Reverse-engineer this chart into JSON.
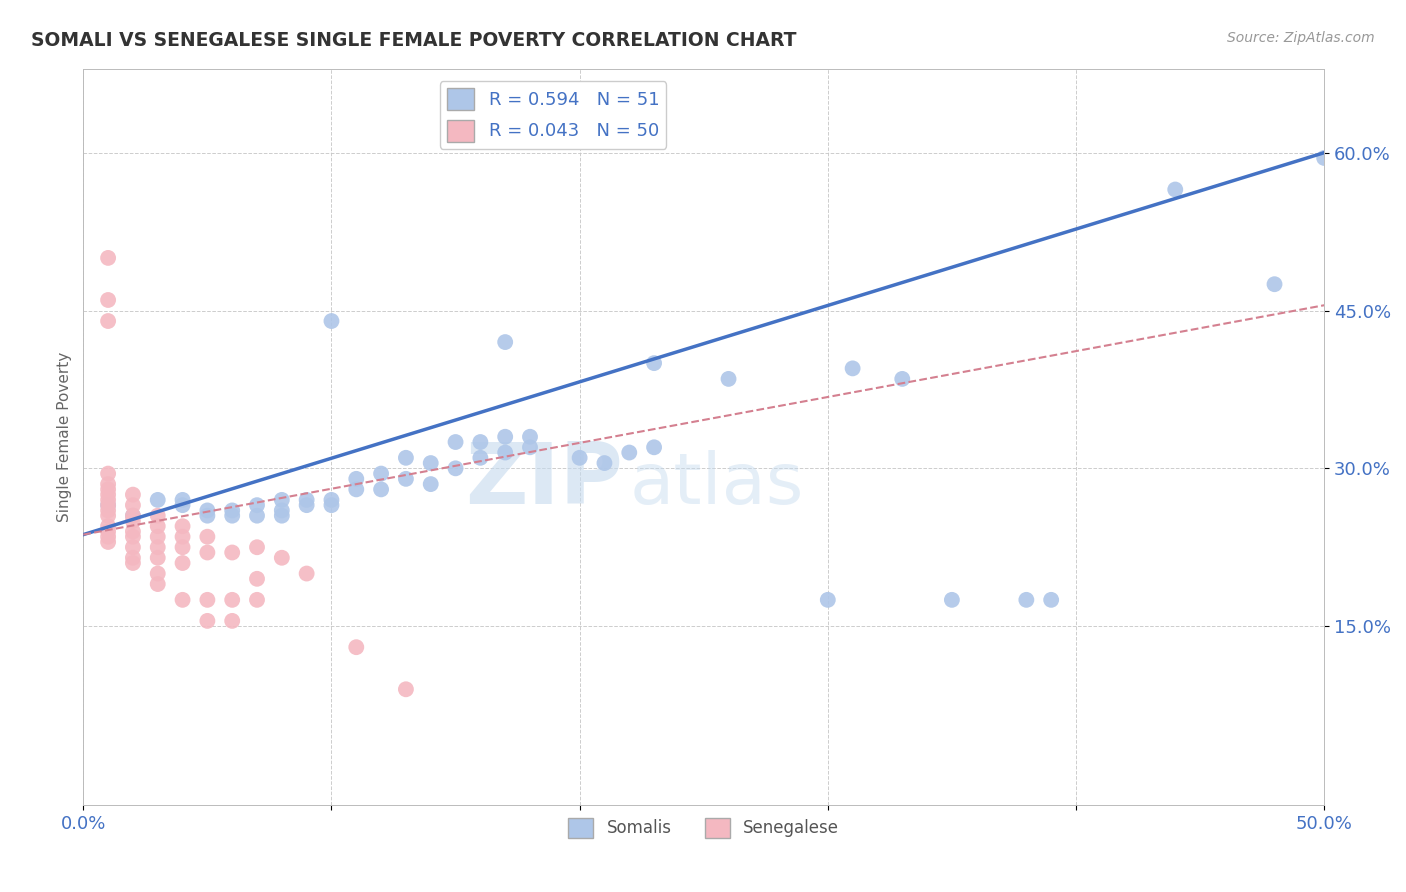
{
  "title": "SOMALI VS SENEGALESE SINGLE FEMALE POVERTY CORRELATION CHART",
  "source": "Source: ZipAtlas.com",
  "ylabel": "Single Female Poverty",
  "xlim": [
    0.0,
    0.5
  ],
  "ylim": [
    -0.02,
    0.68
  ],
  "ytick_labels": [
    "15.0%",
    "30.0%",
    "45.0%",
    "60.0%"
  ],
  "ytick_values": [
    0.15,
    0.3,
    0.45,
    0.6
  ],
  "grid_color": "#c8c8c8",
  "background_color": "#ffffff",
  "somali_color": "#aec6e8",
  "senegalese_color": "#f4b8c1",
  "somali_line_color": "#4472c4",
  "senegalese_line_color": "#d48090",
  "r_somali": 0.594,
  "n_somali": 51,
  "r_senegalese": 0.043,
  "n_senegalese": 50,
  "legend_label_somali": "Somalis",
  "legend_label_senegalese": "Senegalese",
  "watermark_zip": "ZIP",
  "watermark_atlas": "atlas",
  "title_color": "#333333",
  "axis_label_color": "#4472c4",
  "somali_scatter": [
    [
      0.01,
      0.265
    ],
    [
      0.02,
      0.255
    ],
    [
      0.03,
      0.27
    ],
    [
      0.04,
      0.265
    ],
    [
      0.04,
      0.27
    ],
    [
      0.05,
      0.255
    ],
    [
      0.05,
      0.26
    ],
    [
      0.06,
      0.255
    ],
    [
      0.06,
      0.26
    ],
    [
      0.07,
      0.255
    ],
    [
      0.07,
      0.265
    ],
    [
      0.08,
      0.255
    ],
    [
      0.08,
      0.27
    ],
    [
      0.08,
      0.26
    ],
    [
      0.09,
      0.265
    ],
    [
      0.09,
      0.27
    ],
    [
      0.1,
      0.27
    ],
    [
      0.1,
      0.265
    ],
    [
      0.11,
      0.28
    ],
    [
      0.11,
      0.29
    ],
    [
      0.12,
      0.28
    ],
    [
      0.12,
      0.295
    ],
    [
      0.13,
      0.29
    ],
    [
      0.13,
      0.31
    ],
    [
      0.14,
      0.305
    ],
    [
      0.14,
      0.285
    ],
    [
      0.15,
      0.325
    ],
    [
      0.15,
      0.3
    ],
    [
      0.16,
      0.325
    ],
    [
      0.16,
      0.31
    ],
    [
      0.17,
      0.33
    ],
    [
      0.17,
      0.315
    ],
    [
      0.18,
      0.32
    ],
    [
      0.18,
      0.33
    ],
    [
      0.2,
      0.31
    ],
    [
      0.21,
      0.305
    ],
    [
      0.22,
      0.315
    ],
    [
      0.23,
      0.32
    ],
    [
      0.1,
      0.44
    ],
    [
      0.17,
      0.42
    ],
    [
      0.23,
      0.4
    ],
    [
      0.26,
      0.385
    ],
    [
      0.3,
      0.175
    ],
    [
      0.35,
      0.175
    ],
    [
      0.31,
      0.395
    ],
    [
      0.33,
      0.385
    ],
    [
      0.38,
      0.175
    ],
    [
      0.39,
      0.175
    ],
    [
      0.44,
      0.565
    ],
    [
      0.48,
      0.475
    ],
    [
      0.5,
      0.595
    ]
  ],
  "senegalese_scatter": [
    [
      0.01,
      0.5
    ],
    [
      0.01,
      0.46
    ],
    [
      0.01,
      0.44
    ],
    [
      0.01,
      0.295
    ],
    [
      0.01,
      0.285
    ],
    [
      0.01,
      0.28
    ],
    [
      0.01,
      0.275
    ],
    [
      0.01,
      0.27
    ],
    [
      0.01,
      0.265
    ],
    [
      0.01,
      0.26
    ],
    [
      0.01,
      0.255
    ],
    [
      0.01,
      0.245
    ],
    [
      0.01,
      0.24
    ],
    [
      0.01,
      0.235
    ],
    [
      0.01,
      0.23
    ],
    [
      0.02,
      0.275
    ],
    [
      0.02,
      0.265
    ],
    [
      0.02,
      0.255
    ],
    [
      0.02,
      0.25
    ],
    [
      0.02,
      0.24
    ],
    [
      0.02,
      0.235
    ],
    [
      0.02,
      0.225
    ],
    [
      0.02,
      0.215
    ],
    [
      0.02,
      0.21
    ],
    [
      0.03,
      0.255
    ],
    [
      0.03,
      0.245
    ],
    [
      0.03,
      0.235
    ],
    [
      0.03,
      0.225
    ],
    [
      0.03,
      0.215
    ],
    [
      0.03,
      0.2
    ],
    [
      0.03,
      0.19
    ],
    [
      0.04,
      0.245
    ],
    [
      0.04,
      0.235
    ],
    [
      0.04,
      0.225
    ],
    [
      0.04,
      0.21
    ],
    [
      0.04,
      0.175
    ],
    [
      0.05,
      0.235
    ],
    [
      0.05,
      0.22
    ],
    [
      0.05,
      0.175
    ],
    [
      0.05,
      0.155
    ],
    [
      0.06,
      0.22
    ],
    [
      0.06,
      0.175
    ],
    [
      0.06,
      0.155
    ],
    [
      0.07,
      0.225
    ],
    [
      0.07,
      0.195
    ],
    [
      0.07,
      0.175
    ],
    [
      0.08,
      0.215
    ],
    [
      0.09,
      0.2
    ],
    [
      0.11,
      0.13
    ],
    [
      0.13,
      0.09
    ]
  ]
}
